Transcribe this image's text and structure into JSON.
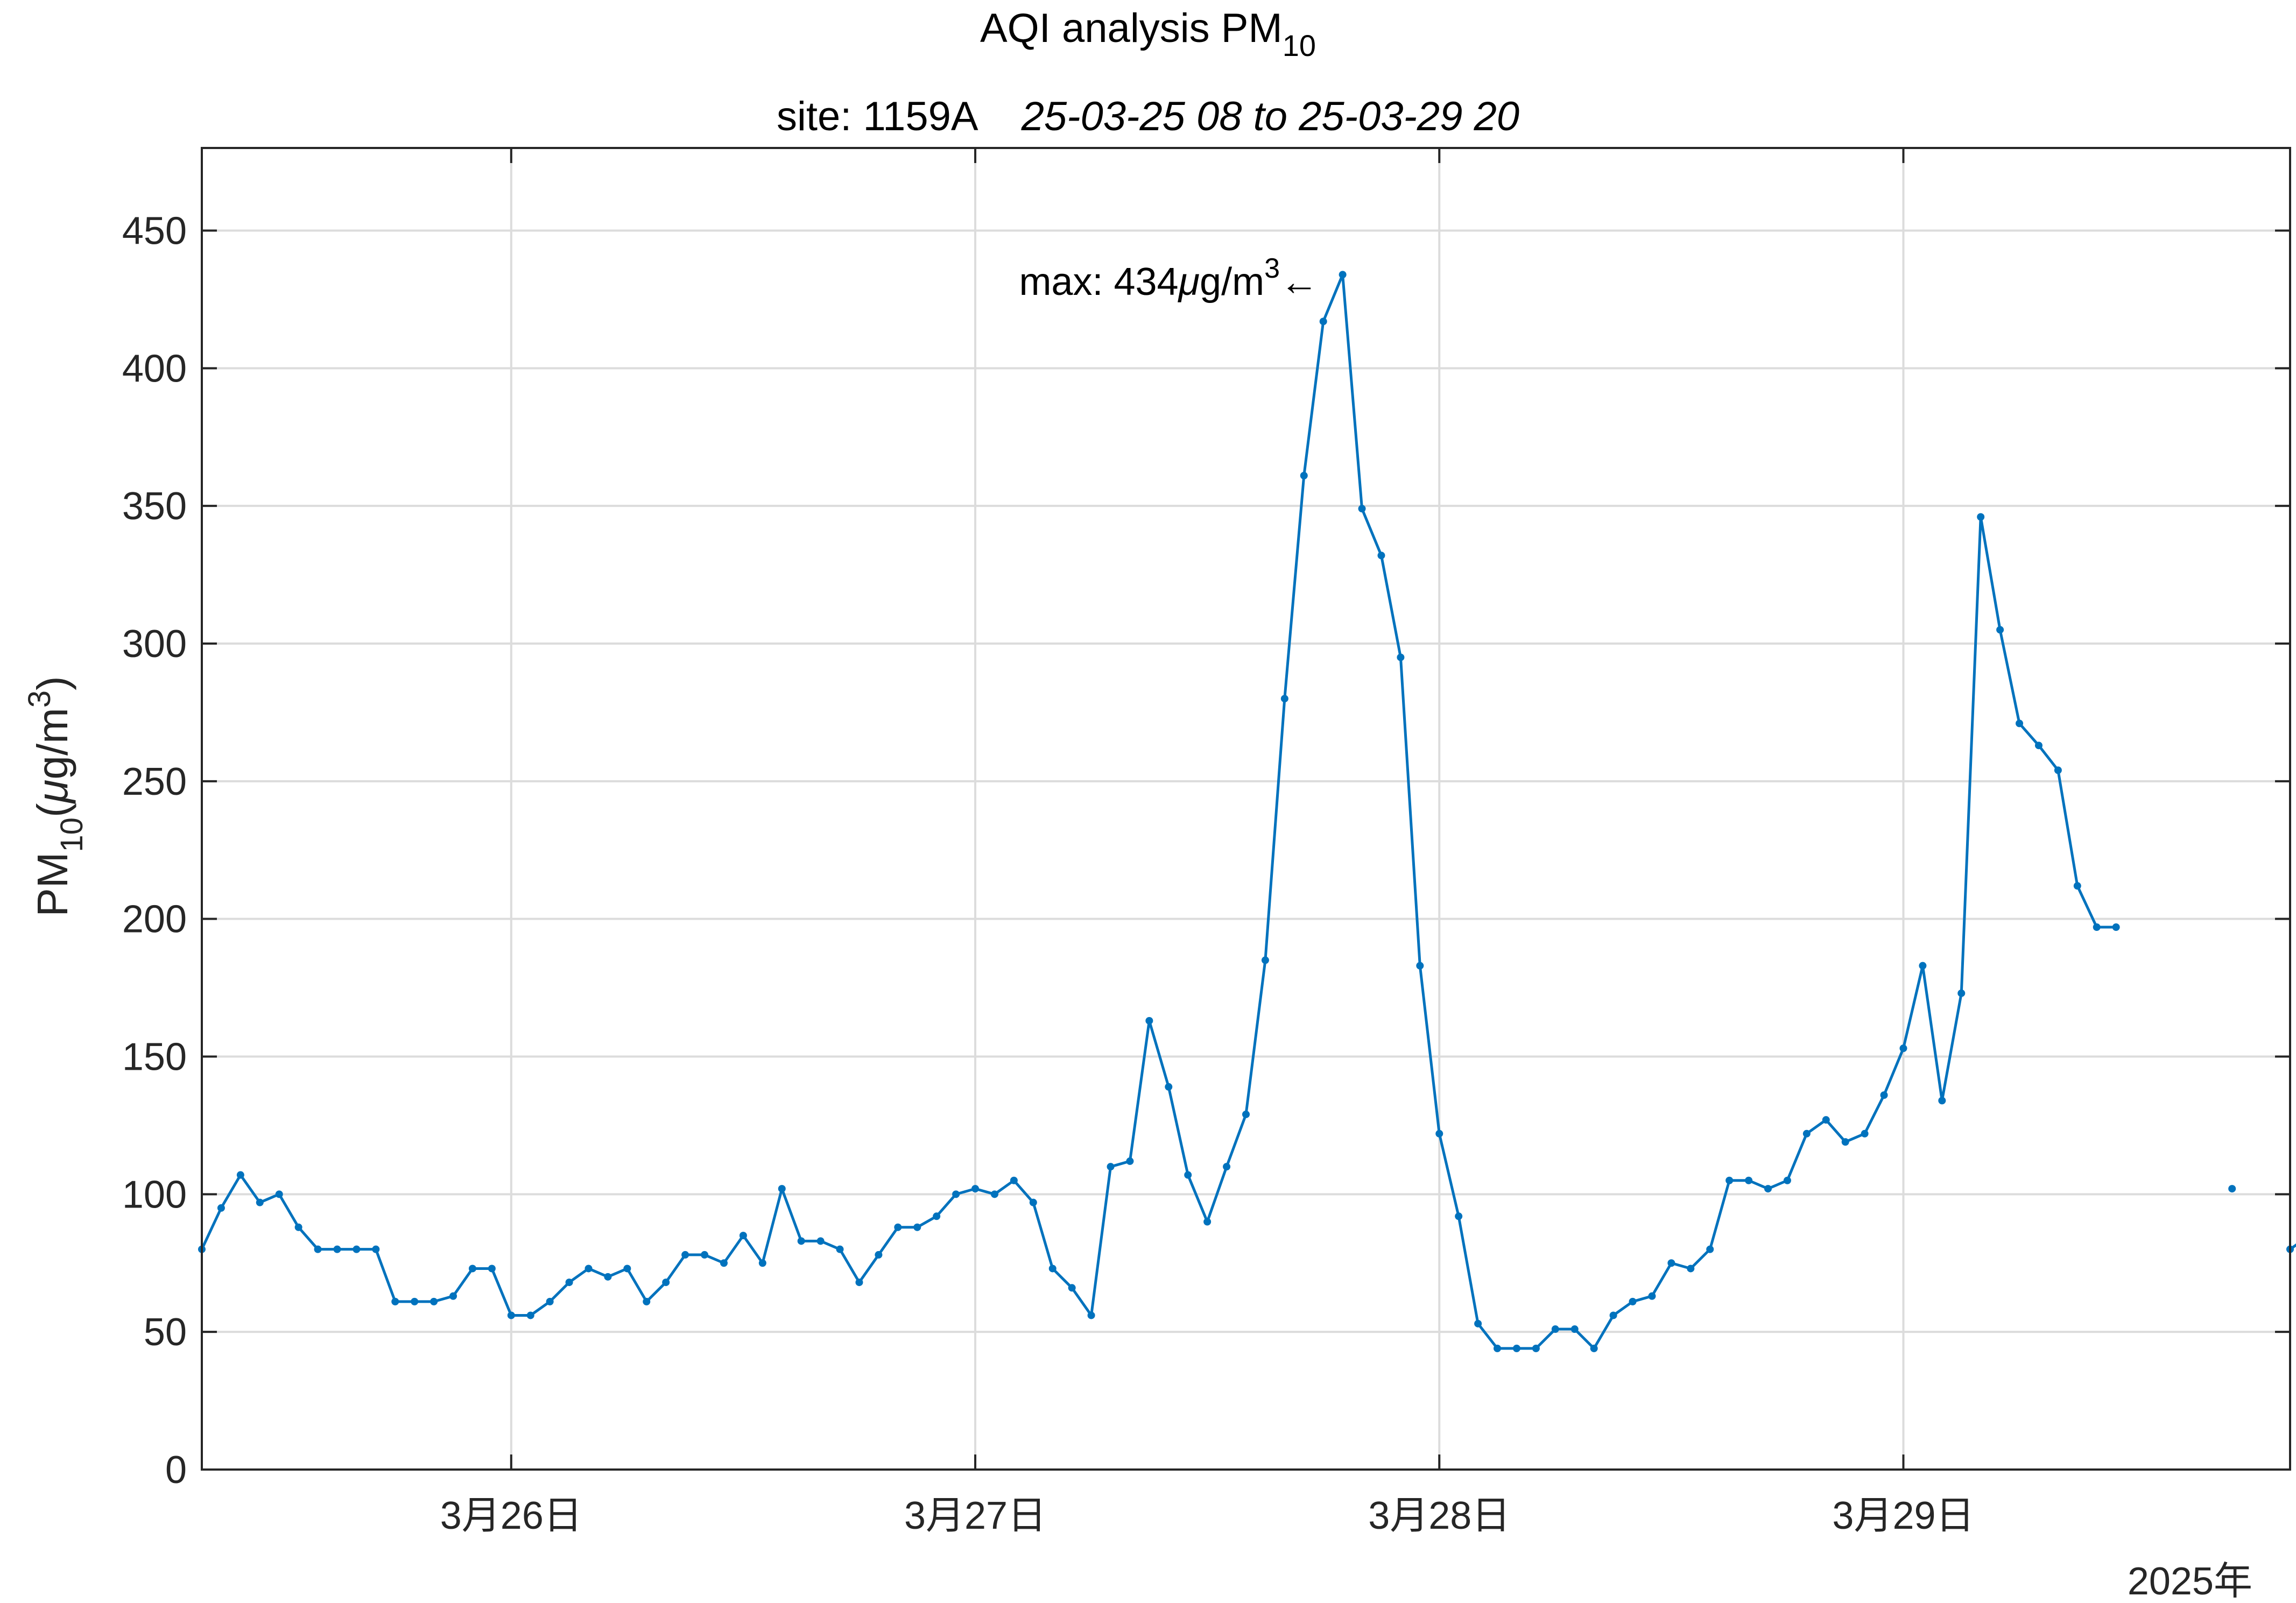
{
  "chart_data": {
    "type": "line",
    "title_main": "AQI analysis PM",
    "title_sub": "10",
    "subtitle_site": "site: 1159A",
    "subtitle_range": "25-03-25 08 to 25-03-29 20",
    "ylabel_main": "PM",
    "ylabel_sub": "10",
    "ylabel_unit_open": "(",
    "ylabel_mu": "μ",
    "ylabel_unit_rest": "g/m",
    "ylabel_exp": "3",
    "ylabel_close": ")",
    "ylim": [
      0,
      480
    ],
    "yticks": [
      0,
      50,
      100,
      150,
      200,
      250,
      300,
      350,
      400,
      450
    ],
    "xlim_hours": [
      0,
      108
    ],
    "xticks": [
      {
        "hour": 16,
        "label": "3月26日"
      },
      {
        "hour": 40,
        "label": "3月27日"
      },
      {
        "hour": 64,
        "label": "3月28日"
      },
      {
        "hour": 88,
        "label": "3月29日"
      }
    ],
    "year_label": "2025年",
    "grid": true,
    "line_color": "#0072BD",
    "annotation": {
      "prefix": "max: 434",
      "mu": "μ",
      "unit": "g/m",
      "exp": "3",
      "arrow": "←",
      "hour": 59,
      "value": 434
    },
    "series": [
      {
        "start_hour": 0,
        "values": [
          80,
          95,
          107,
          97,
          100,
          88,
          80,
          80,
          80,
          80,
          61,
          61,
          61,
          63,
          73,
          73,
          56,
          56,
          61,
          68,
          73,
          70,
          73,
          61,
          68,
          78,
          78,
          75,
          85,
          75,
          102,
          83,
          83,
          80,
          68,
          78,
          88,
          88,
          92,
          100,
          102,
          100,
          105,
          97,
          73,
          66,
          56,
          110,
          112,
          163,
          139,
          107,
          90,
          110,
          129,
          185,
          280,
          361,
          417,
          434,
          349,
          332,
          295,
          183,
          122,
          92,
          53,
          44,
          44,
          44,
          51,
          51,
          44,
          56,
          61,
          63,
          75,
          73,
          80,
          105,
          105,
          102,
          105,
          122,
          127,
          119,
          122,
          136,
          153,
          183,
          134,
          173,
          346,
          305,
          271,
          263,
          254,
          212,
          197,
          197,
          null,
          null,
          null,
          null,
          null,
          102,
          null,
          null,
          80,
          85
        ]
      }
    ]
  }
}
